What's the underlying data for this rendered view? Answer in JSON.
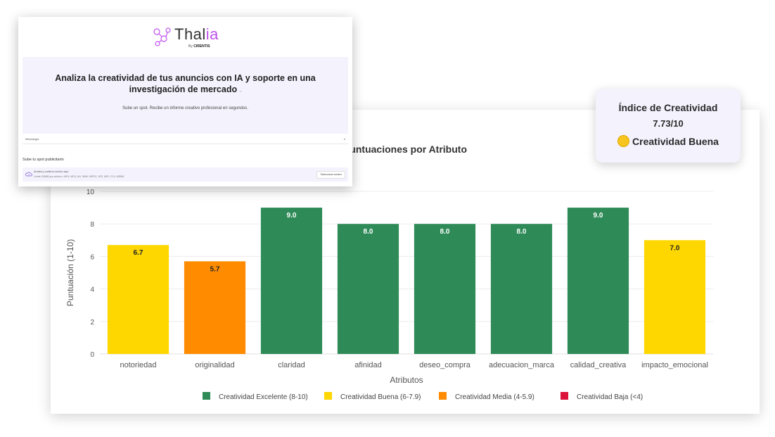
{
  "app": {
    "logo": {
      "name": "Thal",
      "accent": "ia",
      "by": "By",
      "company": "CIRENTIS"
    },
    "hero": {
      "title": "Analiza la creatividad de tus anuncios con IA y soporte en una investigación de mercado",
      "subtitle": "Sube un spot. Recibe un informe creativo profesional en segundos."
    },
    "select": {
      "value": "Metodología"
    },
    "upload": {
      "label": "Sube tu spot publicitario",
      "drop_text": "Arrastra y suelta tu archivo aquí",
      "limit_text": "Límite 200MB por archivo • MP4, MOV, AVI, WMV, MPEG, 3GP, MPG, FLV, WEBM",
      "button": "Seleccionar archivo"
    }
  },
  "index_card": {
    "title": "Índice de Creatividad",
    "value": "7.73/10",
    "status": "Creatividad Buena",
    "status_icon": "yellow-circle-icon"
  },
  "chart_data": {
    "type": "bar",
    "title": "Puntuaciones por Atributo",
    "xlabel": "Atributos",
    "ylabel": "Puntuación (1-10)",
    "ylim": [
      0,
      10
    ],
    "yticks": [
      0,
      2,
      4,
      6,
      8,
      10
    ],
    "categories": [
      "notoriedad",
      "originalidad",
      "claridad",
      "afinidad",
      "deseo_compra",
      "adecuacion_marca",
      "calidad_creativa",
      "impacto_emocional"
    ],
    "values": [
      6.7,
      5.7,
      9.0,
      8.0,
      8.0,
      8.0,
      9.0,
      7.0
    ],
    "value_labels": [
      "6.7",
      "5.7",
      "9.0",
      "8.0",
      "8.0",
      "8.0",
      "9.0",
      "7.0"
    ],
    "bar_colors": [
      "#FFD700",
      "#FF8C00",
      "#2E8B57",
      "#2E8B57",
      "#2E8B57",
      "#2E8B57",
      "#2E8B57",
      "#FFD700"
    ],
    "label_colors": [
      "#222222",
      "#222222",
      "#ffffff",
      "#ffffff",
      "#ffffff",
      "#ffffff",
      "#ffffff",
      "#222222"
    ],
    "legend": [
      {
        "name": "Creatividad Excelente (8-10)",
        "color": "#2E8B57"
      },
      {
        "name": "Creatividad Buena (6-7.9)",
        "color": "#FFD700"
      },
      {
        "name": "Creatividad Media (4-5.9)",
        "color": "#FF8C00"
      },
      {
        "name": "Creatividad Baja (<4)",
        "color": "#DC143C"
      }
    ],
    "legend_position": "bottom",
    "grid": true
  }
}
